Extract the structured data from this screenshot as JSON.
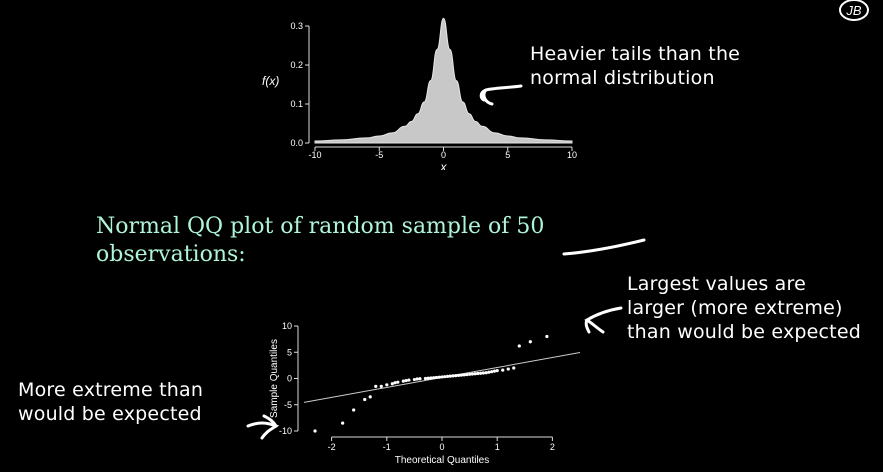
{
  "logo": {
    "text": "JB"
  },
  "density_plot": {
    "ylabel": "f(x)",
    "xlabel": "x"
  },
  "annotations": {
    "tails": "Heavier tails than the\nnormal distribution",
    "heading": "Normal QQ plot of random sample of 50\nobservations:",
    "largest": "Largest values are\nlarger (more extreme)\nthan would be expected",
    "extreme": "More extreme than\nwould be expected"
  },
  "colors": {
    "heading": "#aef5d8",
    "density_fill": "#c8c8c8",
    "background": "#000000"
  },
  "chart_data": [
    {
      "type": "area",
      "xlim": [
        -10,
        10
      ],
      "ylim": [
        0,
        0.3
      ],
      "xticks": [
        -10,
        -5,
        0,
        5,
        10
      ],
      "yticks": [
        0.0,
        0.1,
        0.2,
        0.3
      ],
      "x": [
        -10,
        -8,
        -6,
        -5,
        -4,
        -3,
        -2.5,
        -2,
        -1.5,
        -1,
        -0.5,
        0,
        0.5,
        1,
        1.5,
        2,
        2.5,
        3,
        4,
        5,
        6,
        8,
        10
      ],
      "y": [
        0.005,
        0.008,
        0.013,
        0.018,
        0.026,
        0.043,
        0.055,
        0.075,
        0.105,
        0.16,
        0.24,
        0.32,
        0.24,
        0.16,
        0.105,
        0.075,
        0.055,
        0.043,
        0.026,
        0.018,
        0.013,
        0.008,
        0.005
      ]
    },
    {
      "type": "scatter",
      "xlabel": "Theoretical Quantiles",
      "ylabel": "Sample Quantiles",
      "xlim": [
        -2.5,
        2.5
      ],
      "ylim": [
        -10,
        10
      ],
      "xticks": [
        -2,
        -1,
        0,
        1,
        2
      ],
      "yticks": [
        -10,
        -5,
        0,
        5,
        10
      ],
      "reference_line": {
        "intercept": 0.2,
        "slope": 1.9
      },
      "points": [
        [
          -2.3,
          -10
        ],
        [
          -1.8,
          -8.5
        ],
        [
          -1.6,
          -6
        ],
        [
          -1.4,
          -4
        ],
        [
          -1.3,
          -3.5
        ],
        [
          -1.2,
          -1.5
        ],
        [
          -1.1,
          -1.5
        ],
        [
          -1.0,
          -1.2
        ],
        [
          -0.9,
          -1.0
        ],
        [
          -0.85,
          -0.8
        ],
        [
          -0.8,
          -0.7
        ],
        [
          -0.7,
          -0.5
        ],
        [
          -0.65,
          -0.4
        ],
        [
          -0.6,
          -0.3
        ],
        [
          -0.5,
          -0.2
        ],
        [
          -0.45,
          -0.1
        ],
        [
          -0.4,
          -0.05
        ],
        [
          -0.3,
          0.0
        ],
        [
          -0.25,
          0.05
        ],
        [
          -0.2,
          0.1
        ],
        [
          -0.15,
          0.15
        ],
        [
          -0.1,
          0.2
        ],
        [
          -0.05,
          0.25
        ],
        [
          0.0,
          0.3
        ],
        [
          0.05,
          0.35
        ],
        [
          0.1,
          0.4
        ],
        [
          0.15,
          0.45
        ],
        [
          0.2,
          0.5
        ],
        [
          0.25,
          0.55
        ],
        [
          0.3,
          0.6
        ],
        [
          0.35,
          0.65
        ],
        [
          0.4,
          0.7
        ],
        [
          0.45,
          0.75
        ],
        [
          0.5,
          0.8
        ],
        [
          0.55,
          0.85
        ],
        [
          0.6,
          0.9
        ],
        [
          0.65,
          0.95
        ],
        [
          0.7,
          1.0
        ],
        [
          0.75,
          1.05
        ],
        [
          0.8,
          1.1
        ],
        [
          0.85,
          1.2
        ],
        [
          0.9,
          1.3
        ],
        [
          0.95,
          1.4
        ],
        [
          1.0,
          1.5
        ],
        [
          1.1,
          1.6
        ],
        [
          1.2,
          1.8
        ],
        [
          1.3,
          2.0
        ],
        [
          1.4,
          6.2
        ],
        [
          1.6,
          7.0
        ],
        [
          1.9,
          8.0
        ]
      ]
    }
  ]
}
